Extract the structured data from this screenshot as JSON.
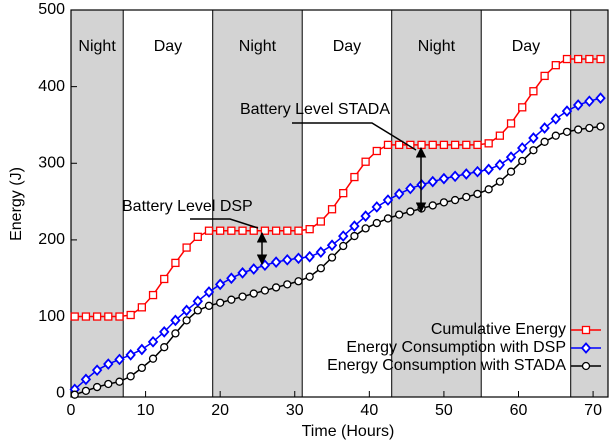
{
  "chart_data": {
    "type": "line",
    "xlabel": "Time (Hours)",
    "ylabel": "Energy (J)",
    "xlim": [
      0,
      72
    ],
    "ylim": [
      -5,
      500
    ],
    "xticks": [
      0,
      10,
      20,
      30,
      40,
      50,
      60,
      70
    ],
    "yticks": [
      0,
      100,
      200,
      300,
      400,
      500
    ],
    "bands": [
      {
        "start": 0,
        "end": 7,
        "label": "Night",
        "shaded": true
      },
      {
        "start": 7,
        "end": 19,
        "label": "Day",
        "shaded": false
      },
      {
        "start": 19,
        "end": 31,
        "label": "Night",
        "shaded": true
      },
      {
        "start": 31,
        "end": 43,
        "label": "Day",
        "shaded": false
      },
      {
        "start": 43,
        "end": 55,
        "label": "Night",
        "shaded": true
      },
      {
        "start": 55,
        "end": 67,
        "label": "Day",
        "shaded": false
      },
      {
        "start": 67,
        "end": 72,
        "shaded": true
      }
    ],
    "annotations": [
      "Battery Level DSP",
      "Battery Level STADA"
    ],
    "legend": "lower right",
    "x": [
      0.5,
      2,
      3.5,
      5,
      6.5,
      8,
      9.5,
      11,
      12.5,
      14,
      15.5,
      17,
      18.5,
      20,
      21.5,
      23,
      24.5,
      26,
      27.5,
      29,
      30.5,
      32,
      33.5,
      35,
      36.5,
      38,
      39.5,
      41,
      42.5,
      44,
      45.5,
      47,
      48.5,
      50,
      51.5,
      53,
      54.5,
      56,
      57.5,
      59,
      60.5,
      62,
      63.5,
      65,
      66.5,
      68,
      69.5,
      71
    ],
    "series": [
      {
        "name": "Cumulative Energy",
        "color": "#ff0000",
        "marker": "square",
        "values": [
          100,
          100,
          100,
          100,
          100,
          102,
          112,
          128,
          149,
          170,
          190,
          204,
          212,
          212,
          212,
          212,
          212,
          212,
          212,
          212,
          212,
          214,
          224,
          240,
          261,
          282,
          302,
          316,
          324,
          324,
          324,
          324,
          324,
          324,
          324,
          324,
          324,
          326,
          336,
          352,
          373,
          394,
          414,
          428,
          436,
          436,
          436,
          436
        ]
      },
      {
        "name": "Energy Consumption with DSP",
        "color": "#0000ff",
        "marker": "diamond",
        "values": [
          5,
          18,
          30,
          38,
          44,
          50,
          57,
          67,
          80,
          95,
          108,
          120,
          132,
          142,
          150,
          157,
          162,
          167,
          171,
          174,
          176,
          178,
          184,
          193,
          205,
          218,
          231,
          243,
          252,
          260,
          267,
          272,
          276,
          280,
          283,
          286,
          289,
          292,
          298,
          308,
          320,
          333,
          346,
          358,
          368,
          376,
          381,
          385
        ]
      },
      {
        "name": "Energy Consumption with STADA",
        "color": "#000000",
        "marker": "circle",
        "values": [
          -2,
          3,
          8,
          12,
          15,
          22,
          33,
          45,
          60,
          78,
          95,
          108,
          114,
          118,
          122,
          126,
          130,
          134,
          138,
          142,
          146,
          152,
          163,
          177,
          192,
          205,
          215,
          222,
          228,
          233,
          237,
          241,
          245,
          249,
          252,
          256,
          260,
          266,
          276,
          289,
          303,
          317,
          328,
          336,
          341,
          344,
          346,
          348
        ]
      }
    ]
  }
}
